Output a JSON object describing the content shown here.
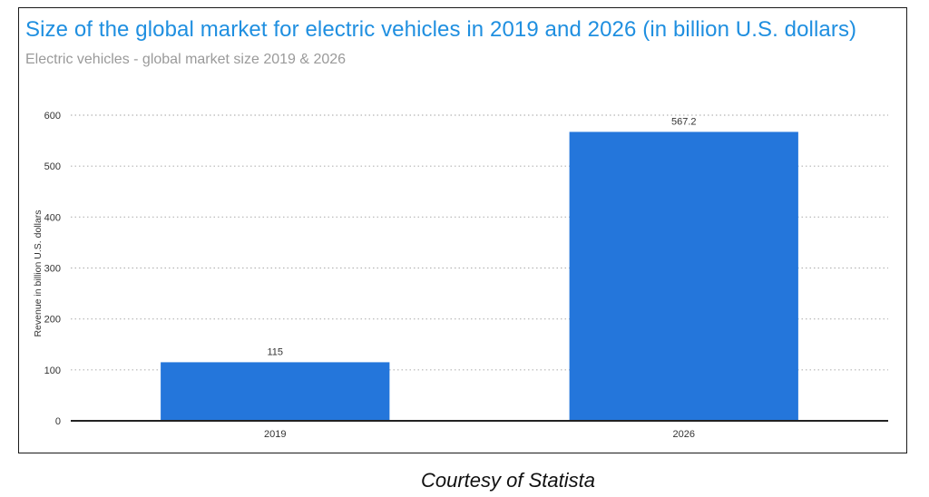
{
  "chart_data": {
    "type": "bar",
    "title": "Size of the global market for electric vehicles in 2019 and 2026 (in billion U.S. dollars)",
    "subtitle": "Electric vehicles - global market size 2019 & 2026",
    "categories": [
      "2019",
      "2026"
    ],
    "values": [
      115,
      567.2
    ],
    "data_labels": [
      "115",
      "567.2"
    ],
    "xlabel": "",
    "ylabel": "Revenue in billion U.S. dollars",
    "ylim": [
      0,
      600
    ],
    "yticks": [
      0,
      100,
      200,
      300,
      400,
      500,
      600
    ],
    "grid": true,
    "legend": "none",
    "colors": {
      "bar": "#2476db",
      "title": "#1f8fe0",
      "subtitle": "#9a9a9a",
      "grid": "#b5b5b5",
      "axis": "#222222"
    }
  },
  "caption": "Courtesy of Statista"
}
